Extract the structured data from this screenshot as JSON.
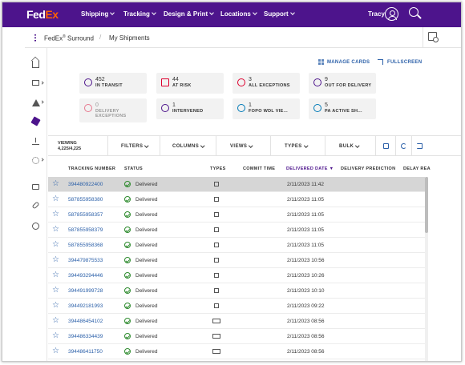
{
  "topnav": {
    "logo_fed": "Fed",
    "logo_ex": "Ex",
    "menu": [
      "Shipping",
      "Tracking",
      "Design & Print",
      "Locations",
      "Support"
    ],
    "user_name": "Tracy"
  },
  "breadcrumb": {
    "app": "FedEx",
    "app_sup": "®",
    "app_suffix": " Surround",
    "page": "My Shipments"
  },
  "actions": {
    "manage_cards": "MANAGE CARDS",
    "fullscreen": "FULLSCREEN"
  },
  "cards": [
    {
      "count": "452",
      "label": "IN TRANSIT",
      "icon": "arrow-right-icon",
      "color": "#4d148c"
    },
    {
      "count": "44",
      "label": "AT RISK",
      "icon": "warning-icon",
      "color": "#de002e"
    },
    {
      "count": "3",
      "label": "ALL EXCEPTIONS",
      "icon": "alert-icon",
      "color": "#de002e"
    },
    {
      "count": "9",
      "label": "OUT FOR DELIVERY",
      "icon": "truck-icon",
      "color": "#4d148c"
    },
    {
      "count": "0",
      "label": "DELIVERY",
      "label2": "EXCEPTIONS",
      "icon": "alert-icon",
      "color": "#de002e"
    },
    {
      "count": "1",
      "label": "INTERVENED",
      "icon": "hand-icon",
      "color": "#4d148c"
    },
    {
      "count": "1",
      "label": "FOPO WDL VIE...",
      "icon": "person-icon",
      "color": "#007ab7"
    },
    {
      "count": "5",
      "label": "PA ACTIVE SH...",
      "icon": "person-icon",
      "color": "#007ab7"
    }
  ],
  "toolbar": {
    "viewing_label": "VIEWING",
    "viewing_count": "4,225/4,225",
    "filters": "FILTERS",
    "columns": "COLUMNS",
    "views": "VIEWS",
    "types": "TYPES",
    "bulk": "BULK"
  },
  "table": {
    "headers": {
      "tracking": "TRACKING NUMBER",
      "status": "STATUS",
      "types": "TYPES",
      "commit": "COMMIT TIME",
      "delivered": "DELIVERED DATE",
      "sort_arrow": "▼",
      "prediction": "DELIVERY PREDICTION",
      "delay": "DELAY REA"
    },
    "rows": [
      {
        "tracking": "394480922400",
        "status": "Delivered",
        "type": "box",
        "delivered": "2/11/2023 11:42"
      },
      {
        "tracking": "587855958380",
        "status": "Delivered",
        "type": "box",
        "delivered": "2/11/2023 11:05"
      },
      {
        "tracking": "587855958357",
        "status": "Delivered",
        "type": "box",
        "delivered": "2/11/2023 11:05"
      },
      {
        "tracking": "587855958379",
        "status": "Delivered",
        "type": "box",
        "delivered": "2/11/2023 11:05"
      },
      {
        "tracking": "587855958368",
        "status": "Delivered",
        "type": "box",
        "delivered": "2/11/2023 11:05"
      },
      {
        "tracking": "394479875533",
        "status": "Delivered",
        "type": "box",
        "delivered": "2/11/2023 10:56"
      },
      {
        "tracking": "394493294446",
        "status": "Delivered",
        "type": "box",
        "delivered": "2/11/2023 10:26"
      },
      {
        "tracking": "394491999728",
        "status": "Delivered",
        "type": "box",
        "delivered": "2/11/2023 10:10"
      },
      {
        "tracking": "394492181993",
        "status": "Delivered",
        "type": "box",
        "delivered": "2/11/2023 09:22"
      },
      {
        "tracking": "394486454102",
        "status": "Delivered",
        "type": "truck",
        "delivered": "2/11/2023 08:56"
      },
      {
        "tracking": "394486334439",
        "status": "Delivered",
        "type": "truck",
        "delivered": "2/11/2023 08:56"
      },
      {
        "tracking": "394486411750",
        "status": "Delivered",
        "type": "truck",
        "delivered": "2/11/2023 08:56"
      }
    ]
  },
  "colors": {
    "brand_purple": "#4d148c",
    "brand_orange": "#ff6200",
    "link_blue": "#2a5fa8",
    "delivered_green": "#2e8b2e"
  }
}
